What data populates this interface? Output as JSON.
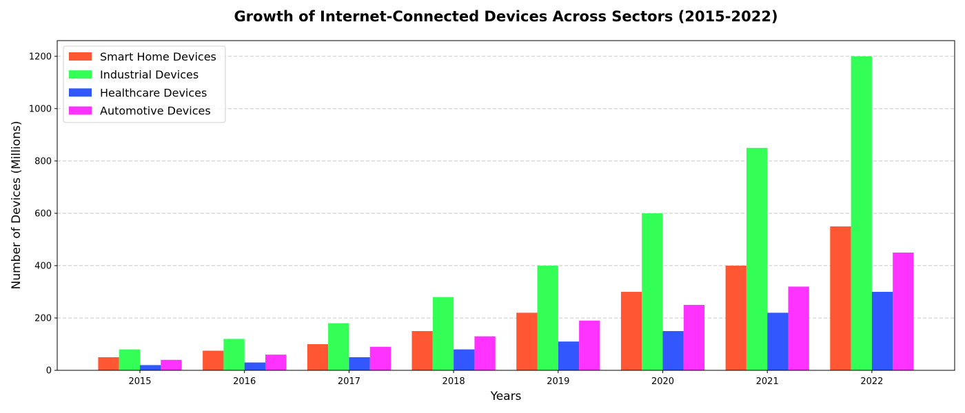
{
  "chart_data": {
    "type": "bar",
    "title": "Growth of Internet-Connected Devices Across Sectors (2015-2022)",
    "xlabel": "Years",
    "ylabel": "Number of Devices (Millions)",
    "categories": [
      "2015",
      "2016",
      "2017",
      "2018",
      "2019",
      "2020",
      "2021",
      "2022"
    ],
    "ylim": [
      0,
      1260
    ],
    "yticks": [
      0,
      200,
      400,
      600,
      800,
      1000,
      1200
    ],
    "grid": "y-dashed",
    "legend_position": "top-left",
    "series": [
      {
        "name": "Smart Home Devices",
        "color": "#ff5733",
        "values": [
          50,
          75,
          100,
          150,
          220,
          300,
          400,
          550
        ]
      },
      {
        "name": "Industrial Devices",
        "color": "#33ff57",
        "values": [
          80,
          120,
          180,
          280,
          400,
          600,
          850,
          1200
        ]
      },
      {
        "name": "Healthcare Devices",
        "color": "#3357ff",
        "values": [
          20,
          30,
          50,
          80,
          110,
          150,
          220,
          300
        ]
      },
      {
        "name": "Automotive Devices",
        "color": "#ff33ff",
        "values": [
          40,
          60,
          90,
          130,
          190,
          250,
          320,
          450
        ]
      }
    ]
  }
}
